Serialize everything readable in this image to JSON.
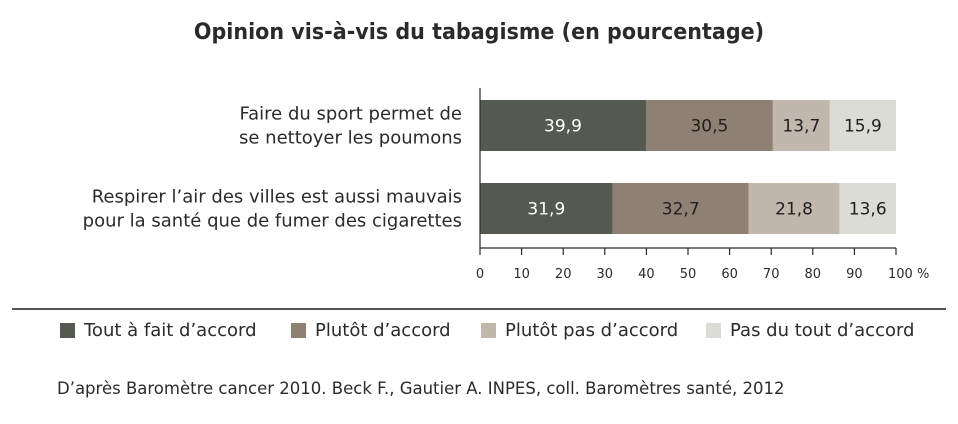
{
  "chart_data": {
    "type": "bar",
    "orientation": "horizontal",
    "stacked": true,
    "title": "Opinion vis-à-vis du tabagisme (en pourcentage)",
    "categories": [
      [
        "Faire du sport permet de",
        "se nettoyer les poumons"
      ],
      [
        "Respirer l’air des villes est aussi mauvais",
        "pour la santé que de fumer des cigarettes"
      ]
    ],
    "series": [
      {
        "name": "Tout à fait d’accord",
        "values": [
          39.9,
          31.9
        ],
        "labels": [
          "39,9",
          "31,9"
        ],
        "color": "#555a51",
        "label_color": "#ffffff"
      },
      {
        "name": "Plutôt d’accord",
        "values": [
          30.5,
          32.7
        ],
        "labels": [
          "30,5",
          "32,7"
        ],
        "color": "#8e8073",
        "label_color": "#1f1f1f"
      },
      {
        "name": "Plutôt pas d’accord",
        "values": [
          13.7,
          21.8
        ],
        "labels": [
          "13,7",
          "21,8"
        ],
        "color": "#c2b7ad",
        "label_color": "#1f1f1f"
      },
      {
        "name": "Pas du tout d’accord",
        "values": [
          15.9,
          13.6
        ],
        "labels": [
          "15,9",
          "13,6"
        ],
        "color": "#dbdcd5",
        "label_color": "#1f1f1f"
      }
    ],
    "xlim": [
      0,
      100
    ],
    "x_ticks": [
      "0",
      "10",
      "20",
      "30",
      "40",
      "50",
      "60",
      "70",
      "80",
      "90",
      "100 %"
    ],
    "legend_position": "bottom",
    "grid": false
  },
  "source": "D’après Baromètre cancer 2010. Beck F., Gautier A. INPES, coll. Baromètres santé, 2012"
}
